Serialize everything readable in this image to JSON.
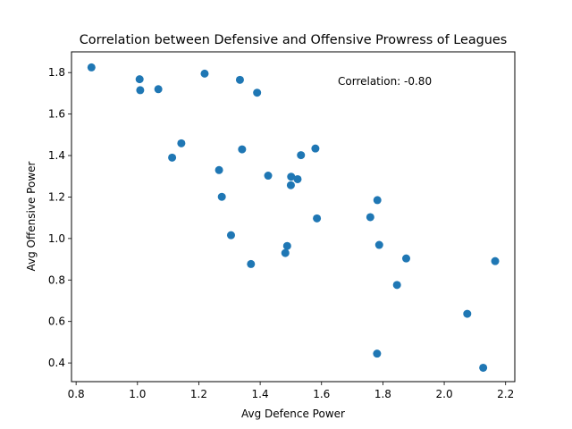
{
  "chart_data": {
    "type": "scatter",
    "title": "Correlation between Defensive and Offensive Prowress of Leagues",
    "xlabel": "Avg Defence Power",
    "ylabel": "Avg Offensive Power",
    "annotation": "Correlation: -0.80",
    "xlim": [
      0.785,
      2.23
    ],
    "ylim": [
      0.31,
      1.9
    ],
    "xticks": [
      0.8,
      1.0,
      1.2,
      1.4,
      1.6,
      1.8,
      2.0,
      2.2
    ],
    "xtick_labels": [
      "0.8",
      "1.0",
      "1.2",
      "1.4",
      "1.6",
      "1.8",
      "2.0",
      "2.2"
    ],
    "yticks": [
      0.4,
      0.6,
      0.8,
      1.0,
      1.2,
      1.4,
      1.6,
      1.8
    ],
    "ytick_labels": [
      "0.4",
      "0.6",
      "0.8",
      "1.0",
      "1.2",
      "1.4",
      "1.6",
      "1.8"
    ],
    "grid": false,
    "marker_color": "#1f77b4",
    "points": [
      {
        "x": 0.85,
        "y": 1.825
      },
      {
        "x": 1.007,
        "y": 1.768
      },
      {
        "x": 1.009,
        "y": 1.715
      },
      {
        "x": 1.068,
        "y": 1.72
      },
      {
        "x": 1.219,
        "y": 1.795
      },
      {
        "x": 1.334,
        "y": 1.765
      },
      {
        "x": 1.39,
        "y": 1.703
      },
      {
        "x": 1.143,
        "y": 1.459
      },
      {
        "x": 1.113,
        "y": 1.39
      },
      {
        "x": 1.341,
        "y": 1.43
      },
      {
        "x": 1.58,
        "y": 1.434
      },
      {
        "x": 1.533,
        "y": 1.402
      },
      {
        "x": 1.266,
        "y": 1.33
      },
      {
        "x": 1.426,
        "y": 1.303
      },
      {
        "x": 1.501,
        "y": 1.298
      },
      {
        "x": 1.522,
        "y": 1.286
      },
      {
        "x": 1.5,
        "y": 1.257
      },
      {
        "x": 1.275,
        "y": 1.201
      },
      {
        "x": 1.782,
        "y": 1.185
      },
      {
        "x": 1.759,
        "y": 1.103
      },
      {
        "x": 1.585,
        "y": 1.097
      },
      {
        "x": 1.305,
        "y": 1.016
      },
      {
        "x": 1.488,
        "y": 0.964
      },
      {
        "x": 1.788,
        "y": 0.969
      },
      {
        "x": 1.482,
        "y": 0.93
      },
      {
        "x": 1.876,
        "y": 0.904
      },
      {
        "x": 2.166,
        "y": 0.891
      },
      {
        "x": 1.37,
        "y": 0.877
      },
      {
        "x": 1.846,
        "y": 0.776
      },
      {
        "x": 2.075,
        "y": 0.637
      },
      {
        "x": 1.781,
        "y": 0.445
      },
      {
        "x": 2.127,
        "y": 0.377
      }
    ]
  }
}
